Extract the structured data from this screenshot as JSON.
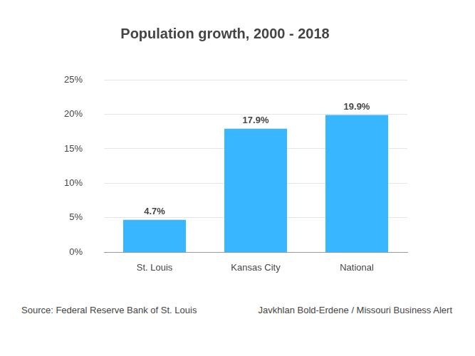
{
  "chart_data": {
    "type": "bar",
    "title": "Population growth, 2000 - 2018",
    "categories": [
      "St. Louis",
      "Kansas City",
      "National"
    ],
    "values": [
      4.7,
      17.9,
      19.9
    ],
    "value_labels": [
      "4.7%",
      "17.9%",
      "19.9%"
    ],
    "data_labels": true,
    "color": "#38b6ff",
    "ylim": [
      0,
      25
    ],
    "yticks": [
      {
        "value": 0,
        "label": "0%"
      },
      {
        "value": 5,
        "label": "5%"
      },
      {
        "value": 10,
        "label": "10%"
      },
      {
        "value": 15,
        "label": "15%"
      },
      {
        "value": 20,
        "label": "20%"
      },
      {
        "value": 25,
        "label": "25%"
      }
    ],
    "grid": true,
    "annotations": [
      "Source: Federal Reserve Bank of St. Louis",
      "Javkhlan Bold-Erdene / Missouri Business Alert"
    ]
  }
}
